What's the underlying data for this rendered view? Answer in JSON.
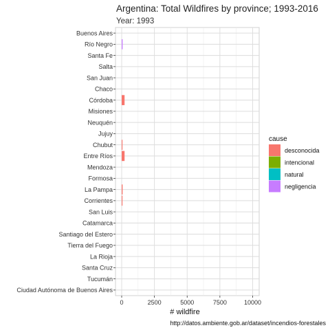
{
  "chart_data": {
    "type": "bar",
    "orientation": "horizontal",
    "stacked": true,
    "title": "Argentina: Total Wildfires by province; 1993-2016",
    "subtitle": "Year: 1993",
    "xlabel": "# wildfire",
    "caption": "http://datos.ambiente.gob.ar/dataset/incendios-forestales",
    "xlim": [
      0,
      10500
    ],
    "xticks": [
      0,
      2500,
      5000,
      7500,
      10000
    ],
    "xtick_labels": [
      "0",
      "2500",
      "5000",
      "7500",
      "10000"
    ],
    "grid": true,
    "legend": {
      "title": "cause",
      "position": "right"
    },
    "categories": [
      "Buenos Aires",
      "Río Negro",
      "Santa Fe",
      "Salta",
      "San Juan",
      "Chaco",
      "Córdoba",
      "Misiones",
      "Neuquén",
      "Jujuy",
      "Chubut",
      "Entre Ríos",
      "Mendoza",
      "Formosa",
      "La Pampa",
      "Corrientes",
      "San Luis",
      "Catamarca",
      "Santiago del Estero",
      "Tierra del Fuego",
      "La Rioja",
      "Santa Cruz",
      "Tucumán",
      "Ciudad Autónoma de Buenos Aires"
    ],
    "series": [
      {
        "name": "desconocida",
        "color": "#F8766D",
        "values": [
          0,
          0,
          0,
          0,
          0,
          0,
          220,
          0,
          0,
          0,
          60,
          220,
          0,
          0,
          70,
          60,
          0,
          0,
          0,
          0,
          0,
          0,
          0,
          0
        ]
      },
      {
        "name": "intencional",
        "color": "#7CAE00",
        "values": [
          0,
          0,
          0,
          0,
          0,
          0,
          0,
          0,
          0,
          0,
          0,
          0,
          0,
          0,
          0,
          0,
          0,
          0,
          0,
          0,
          0,
          0,
          0,
          0
        ]
      },
      {
        "name": "natural",
        "color": "#00BFC4",
        "values": [
          0,
          0,
          0,
          0,
          0,
          0,
          0,
          0,
          0,
          0,
          0,
          0,
          0,
          0,
          0,
          0,
          0,
          0,
          0,
          0,
          0,
          0,
          0,
          0
        ]
      },
      {
        "name": "negligencia",
        "color": "#C77CFF",
        "values": [
          0,
          70,
          0,
          0,
          0,
          0,
          0,
          0,
          0,
          0,
          0,
          0,
          0,
          0,
          0,
          0,
          0,
          0,
          0,
          0,
          0,
          0,
          0,
          0
        ]
      }
    ]
  }
}
